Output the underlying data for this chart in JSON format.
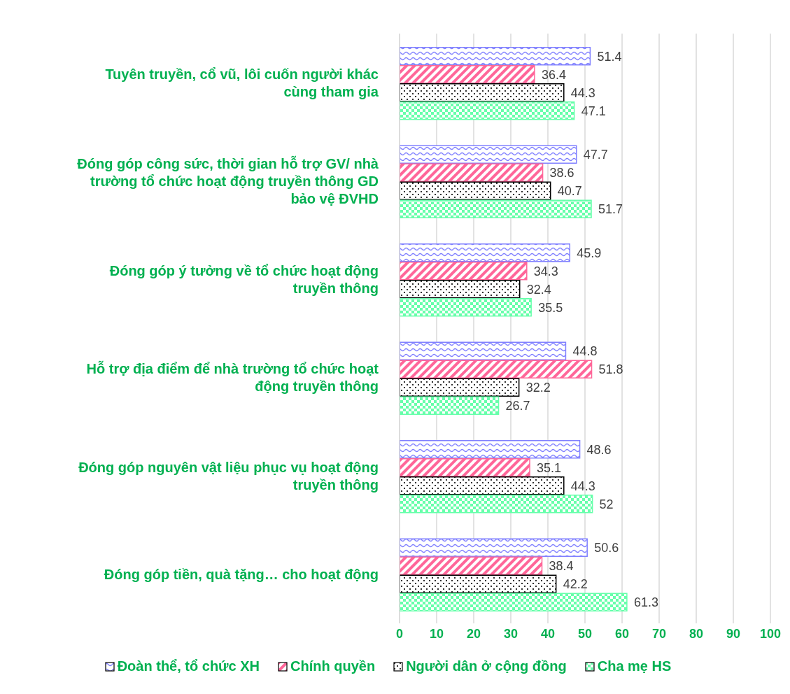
{
  "chart_data": {
    "type": "bar",
    "orientation": "horizontal",
    "categories": [
      "Tuyên truyền, cổ vũ, lôi cuốn người khác cùng tham gia",
      "Đóng góp công sức, thời gian hỗ trợ GV/ nhà trường tổ chức hoạt động truyền thông GD bảo vệ ĐVHD",
      "Đóng góp ý tưởng về tổ chức hoạt động truyền thông",
      "Hỗ trợ địa điểm để nhà trường tổ chức hoạt động truyền thông",
      "Đóng góp nguyên vật liệu phục vụ hoạt động truyền thông",
      "Đóng góp tiền, quà tặng… cho hoạt động"
    ],
    "series": [
      {
        "name": "Đoàn thể, tổ chức XH",
        "color": "#8080ff",
        "values": [
          51.4,
          47.7,
          45.9,
          44.8,
          48.6,
          50.6
        ]
      },
      {
        "name": "Chính quyền",
        "color": "#ff6699",
        "values": [
          36.4,
          38.6,
          34.3,
          51.8,
          35.1,
          38.4
        ]
      },
      {
        "name": "Người dân ở cộng đồng",
        "color": "#000000",
        "values": [
          44.3,
          40.7,
          32.4,
          32.2,
          44.3,
          42.2
        ]
      },
      {
        "name": "Cha mẹ HS",
        "color": "#66ffaa",
        "values": [
          47.1,
          51.7,
          35.5,
          26.7,
          52,
          61.3
        ]
      }
    ],
    "xlim": [
      0,
      100
    ],
    "xticks": [
      0,
      10,
      20,
      30,
      40,
      50,
      60,
      70,
      80,
      90,
      100
    ],
    "grid": "x",
    "legend": "bottom",
    "data_labels": true
  }
}
